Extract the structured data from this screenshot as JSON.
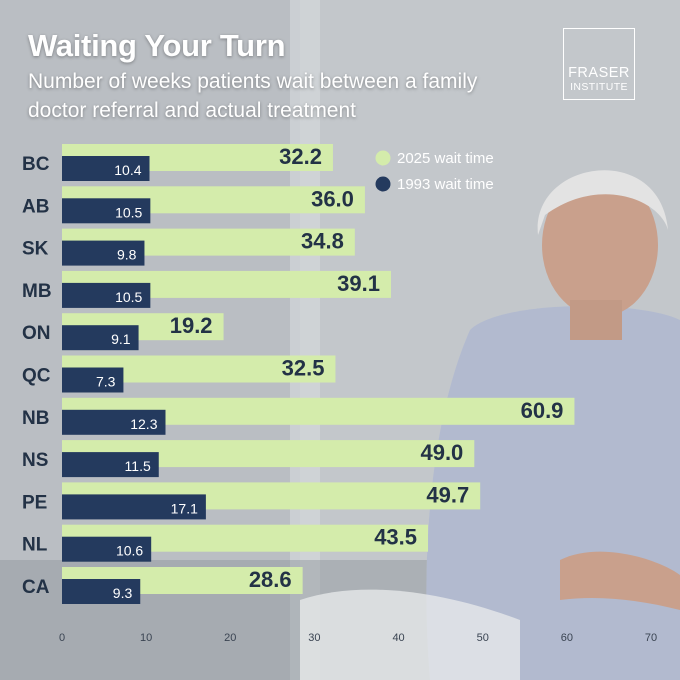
{
  "header": {
    "title": "Waiting Your Turn",
    "subtitle": "Number of weeks patients wait between a family doctor referral and actual treatment"
  },
  "logo": {
    "line1": "FRASER",
    "line2": "INSTITUTE"
  },
  "colors": {
    "series_2025": "#d4ecab",
    "series_1993": "#243a5e",
    "label_dark": "#233246"
  },
  "chart_data": {
    "type": "bar",
    "orientation": "horizontal",
    "categories": [
      "BC",
      "AB",
      "SK",
      "MB",
      "ON",
      "QC",
      "NB",
      "NS",
      "PE",
      "NL",
      "CA"
    ],
    "series": [
      {
        "name": "2025 wait time",
        "values": [
          32.2,
          36.0,
          34.8,
          39.1,
          19.2,
          32.5,
          60.9,
          49.0,
          49.7,
          43.5,
          28.6
        ]
      },
      {
        "name": "1993 wait time",
        "values": [
          10.4,
          10.5,
          9.8,
          10.5,
          9.1,
          7.3,
          12.3,
          11.5,
          17.1,
          10.6,
          9.3
        ]
      }
    ],
    "xlim": [
      0,
      70
    ],
    "xticks": [
      0,
      10,
      20,
      30,
      40,
      50,
      60,
      70
    ],
    "grid": false,
    "legend": "top-right"
  }
}
